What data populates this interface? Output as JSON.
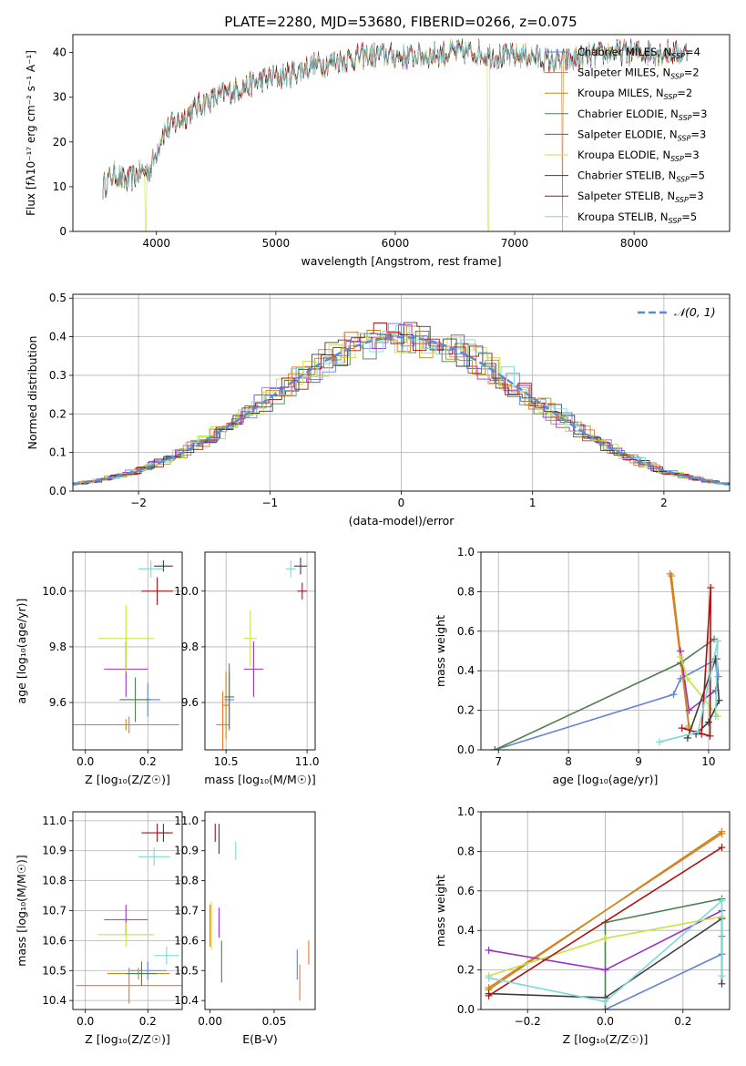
{
  "title": "PLATE=2280, MJD=53680, FIBERID=0266, z=0.075",
  "colors": [
    "#6282d6",
    "#e9772a",
    "#c48a1c",
    "#4f7e4f",
    "#9a32c4",
    "#c8e340",
    "#3e3e3e",
    "#b01010",
    "#7fd8d8"
  ],
  "chart_data": [
    {
      "id": "spectrum",
      "type": "line",
      "xlabel": "wavelength [Angstrom, rest frame]",
      "ylabel": "Flux [fλ10⁻¹⁷ erg cm⁻² s⁻¹ A⁻¹]",
      "xlim": [
        3300,
        8800
      ],
      "ylim": [
        0,
        44
      ],
      "xticks": [
        4000,
        5000,
        6000,
        7000,
        8000
      ],
      "yticks": [
        0,
        10,
        20,
        30,
        40
      ],
      "grid": false,
      "legend_position": "top-right",
      "legend": [
        "Chabrier MILES, N_SSP=4",
        "Salpeter MILES, N_SSP=2",
        "Kroupa MILES, N_SSP=2",
        "Chabrier ELODIE, N_SSP=3",
        "Salpeter ELODIE, N_SSP=3",
        "Kroupa ELODIE, N_SSP=3",
        "Chabrier STELIB, N_SSP=5",
        "Salpeter STELIB, N_SSP=3",
        "Kroupa STELIB, N_SSP=5"
      ],
      "continuum": {
        "x": [
          3550,
          3650,
          3750,
          3850,
          3950,
          4050,
          4150,
          4250,
          4350,
          4500,
          4700,
          4900,
          5100,
          5300,
          5500,
          5700,
          5900,
          6100,
          6300,
          6500,
          6700,
          6900,
          7100,
          7300,
          7400,
          7600,
          7800,
          8000,
          8200,
          8400
        ],
        "y": [
          10,
          13,
          11,
          13,
          14,
          22,
          24,
          26,
          28,
          30,
          32,
          34,
          35,
          37,
          38,
          39,
          39.5,
          39,
          39.5,
          40,
          40,
          39,
          39.5,
          38,
          38,
          39,
          40,
          40,
          40,
          40
        ]
      },
      "breaks": [
        {
          "series": 5,
          "x": 3910
        },
        {
          "series": 5,
          "x": 6780
        },
        {
          "series": 1,
          "x": 7400
        }
      ]
    },
    {
      "id": "residuals",
      "type": "line",
      "xlabel": "(data-model)/error",
      "ylabel": "Normed distribution",
      "xlim": [
        -2.5,
        2.5
      ],
      "ylim": [
        0,
        0.51
      ],
      "xticks": [
        -2,
        -1,
        0,
        1,
        2
      ],
      "yticks": [
        0.0,
        0.1,
        0.2,
        0.3,
        0.4,
        0.5
      ],
      "grid": true,
      "legend_position": "top-right",
      "legend": [
        "𝒩(0, 1)"
      ],
      "bin_width": 0.1
    },
    {
      "id": "z-age",
      "type": "scatter",
      "xlabel": "Z [log₁₀(Z/Z☉)]",
      "ylabel": "age  [log₁₀(age/yr)]",
      "xlim": [
        -0.04,
        0.31
      ],
      "ylim": [
        9.43,
        10.14
      ],
      "xticks": [
        0.0,
        0.2
      ],
      "yticks": [
        9.6,
        9.8,
        10.0
      ],
      "grid": true,
      "points": [
        {
          "series": 0,
          "x": 0.2,
          "y": 9.61,
          "xerr": 0.04,
          "yerr": 0.06
        },
        {
          "series": 1,
          "x": 0.14,
          "y": 9.52,
          "xerr": 0.16,
          "yerr": 0.03
        },
        {
          "series": 2,
          "x": 0.13,
          "y": 9.52,
          "xerr": 0.17,
          "yerr": 0.02
        },
        {
          "series": 3,
          "x": 0.16,
          "y": 9.61,
          "xerr": 0.05,
          "yerr": 0.08
        },
        {
          "series": 4,
          "x": 0.13,
          "y": 9.72,
          "xerr": 0.07,
          "yerr": 0.1
        },
        {
          "series": 5,
          "x": 0.13,
          "y": 9.83,
          "xerr": 0.09,
          "yerr": 0.12
        },
        {
          "series": 6,
          "x": 0.25,
          "y": 10.09,
          "xerr": 0.03,
          "yerr": 0.02
        },
        {
          "series": 7,
          "x": 0.23,
          "y": 10.0,
          "xerr": 0.05,
          "yerr": 0.05
        },
        {
          "series": 8,
          "x": 0.21,
          "y": 10.08,
          "xerr": 0.04,
          "yerr": 0.03
        }
      ]
    },
    {
      "id": "mass-age",
      "type": "scatter",
      "xlabel": "mass [log₁₀(M/M☉)]",
      "ylabel": "",
      "xlim": [
        10.37,
        11.05
      ],
      "ylim": [
        9.43,
        10.14
      ],
      "xticks": [
        10.5,
        11.0
      ],
      "yticks": [
        9.6,
        9.8,
        10.0
      ],
      "grid": true,
      "points": [
        {
          "series": 0,
          "x": 10.52,
          "y": 9.61,
          "xerr": 0.03,
          "yerr": 0.1
        },
        {
          "series": 1,
          "x": 10.48,
          "y": 9.52,
          "xerr": 0.04,
          "yerr": 0.12
        },
        {
          "series": 2,
          "x": 10.5,
          "y": 9.59,
          "xerr": 0.02,
          "yerr": 0.12
        },
        {
          "series": 3,
          "x": 10.52,
          "y": 9.62,
          "xerr": 0.03,
          "yerr": 0.12
        },
        {
          "series": 4,
          "x": 10.67,
          "y": 9.72,
          "xerr": 0.06,
          "yerr": 0.1
        },
        {
          "series": 5,
          "x": 10.65,
          "y": 9.83,
          "xerr": 0.04,
          "yerr": 0.1
        },
        {
          "series": 6,
          "x": 10.96,
          "y": 10.09,
          "xerr": 0.04,
          "yerr": 0.03
        },
        {
          "series": 7,
          "x": 10.97,
          "y": 10.0,
          "xerr": 0.03,
          "yerr": 0.03
        },
        {
          "series": 8,
          "x": 10.9,
          "y": 10.08,
          "xerr": 0.03,
          "yerr": 0.03
        }
      ]
    },
    {
      "id": "age-weight",
      "type": "line",
      "xlabel": "age  [log₁₀(age/yr)]",
      "ylabel": "mass weight",
      "xlim": [
        6.75,
        10.3
      ],
      "ylim": [
        0,
        1.0
      ],
      "xticks": [
        7,
        8,
        9,
        10
      ],
      "yticks": [
        0.0,
        0.2,
        0.4,
        0.6,
        0.8,
        1.0
      ],
      "grid": true,
      "series": [
        {
          "series": 0,
          "x": [
            6.95,
            9.5,
            9.6,
            10.12,
            10.14
          ],
          "y": [
            0.0,
            0.28,
            0.36,
            0.46,
            0.37
          ]
        },
        {
          "series": 1,
          "x": [
            9.45,
            9.72
          ],
          "y": [
            0.89,
            0.11
          ]
        },
        {
          "series": 2,
          "x": [
            9.47,
            9.72
          ],
          "y": [
            0.88,
            0.12
          ]
        },
        {
          "series": 3,
          "x": [
            6.95,
            9.6,
            10.08
          ],
          "y": [
            0.0,
            0.44,
            0.56
          ]
        },
        {
          "series": 4,
          "x": [
            9.6,
            9.72,
            10.1
          ],
          "y": [
            0.5,
            0.2,
            0.3
          ]
        },
        {
          "series": 5,
          "x": [
            9.6,
            9.7,
            10.13
          ],
          "y": [
            0.47,
            0.36,
            0.17
          ]
        },
        {
          "series": 6,
          "x": [
            9.7,
            10.1,
            10.15,
            10.0,
            9.82
          ],
          "y": [
            0.06,
            0.46,
            0.25,
            0.14,
            0.08
          ]
        },
        {
          "series": 7,
          "x": [
            9.62,
            10.02,
            10.03,
            9.9
          ],
          "y": [
            0.11,
            0.07,
            0.82,
            0.08
          ]
        },
        {
          "series": 8,
          "x": [
            9.3,
            9.85,
            10.13,
            10.1
          ],
          "y": [
            0.04,
            0.09,
            0.55,
            0.17
          ]
        }
      ]
    },
    {
      "id": "z-mass",
      "type": "scatter",
      "xlabel": "Z [log₁₀(Z/Z☉)]",
      "ylabel": "mass [log₁₀(M/M☉)]",
      "xlim": [
        -0.04,
        0.31
      ],
      "ylim": [
        10.37,
        11.03
      ],
      "xticks": [
        0.0,
        0.2
      ],
      "yticks": [
        10.4,
        10.5,
        10.6,
        10.7,
        10.8,
        10.9,
        11.0
      ],
      "grid": true,
      "points": [
        {
          "series": 0,
          "x": 0.2,
          "y": 10.5,
          "xerr": 0.06,
          "yerr": 0.03
        },
        {
          "series": 1,
          "x": 0.14,
          "y": 10.45,
          "xerr": 0.17,
          "yerr": 0.06
        },
        {
          "series": 2,
          "x": 0.17,
          "y": 10.49,
          "xerr": 0.1,
          "yerr": 0.02
        },
        {
          "series": 3,
          "x": 0.18,
          "y": 10.49,
          "xerr": 0.05,
          "yerr": 0.04
        },
        {
          "series": 4,
          "x": 0.13,
          "y": 10.67,
          "xerr": 0.07,
          "yerr": 0.05
        },
        {
          "series": 5,
          "x": 0.13,
          "y": 10.62,
          "xerr": 0.09,
          "yerr": 0.04
        },
        {
          "series": 6,
          "x": 0.25,
          "y": 10.96,
          "xerr": 0.02,
          "yerr": 0.03
        },
        {
          "series": 7,
          "x": 0.23,
          "y": 10.96,
          "xerr": 0.05,
          "yerr": 0.03
        },
        {
          "series": 8,
          "x": 0.22,
          "y": 10.88,
          "xerr": 0.05,
          "yerr": 0.03
        },
        {
          "series": 8,
          "x": 0.26,
          "y": 10.55,
          "xerr": 0.04,
          "yerr": 0.03
        }
      ]
    },
    {
      "id": "ebv-mass",
      "type": "scatter",
      "xlabel": "E(B-V)",
      "ylabel": "",
      "xlim": [
        -0.004,
        0.082
      ],
      "ylim": [
        10.37,
        11.03
      ],
      "xticks": [
        0.0,
        0.05
      ],
      "yticks": [
        10.4,
        10.5,
        10.6,
        10.7,
        10.8,
        10.9,
        11.0
      ],
      "grid": false,
      "points": [
        {
          "series": 0,
          "x": 0.068,
          "y": 10.52,
          "yerr": 0.05
        },
        {
          "series": 1,
          "x": 0.07,
          "y": 10.46,
          "yerr": 0.06
        },
        {
          "series": 2,
          "x": 0.0,
          "y": 10.65,
          "yerr": 0.07
        },
        {
          "series": 3,
          "x": 0.009,
          "y": 10.53,
          "yerr": 0.07
        },
        {
          "series": 4,
          "x": 0.007,
          "y": 10.66,
          "yerr": 0.05
        },
        {
          "series": 5,
          "x": 0.001,
          "y": 10.65,
          "yerr": 0.08
        },
        {
          "series": 6,
          "x": 0.007,
          "y": 10.94,
          "yerr": 0.05
        },
        {
          "series": 7,
          "x": 0.004,
          "y": 10.96,
          "yerr": 0.03
        },
        {
          "series": 8,
          "x": 0.02,
          "y": 10.9,
          "yerr": 0.03
        },
        {
          "series": 1,
          "x": 0.077,
          "y": 10.56,
          "yerr": 0.04
        }
      ]
    },
    {
      "id": "z-weight",
      "type": "line",
      "xlabel": "Z [log₁₀(Z/Z☉)]",
      "ylabel": "mass weight",
      "xlim": [
        -0.32,
        0.32
      ],
      "ylim": [
        0,
        1.0
      ],
      "xticks": [
        -0.2,
        0.0,
        0.2
      ],
      "yticks": [
        0.0,
        0.2,
        0.4,
        0.6,
        0.8,
        1.0
      ],
      "grid": true,
      "series": [
        {
          "series": 0,
          "x": [
            0.0,
            0.3,
            0.3
          ],
          "y": [
            0.0,
            0.28,
            0.37
          ]
        },
        {
          "series": 1,
          "x": [
            -0.3,
            0.3
          ],
          "y": [
            0.11,
            0.89
          ]
        },
        {
          "series": 2,
          "x": [
            -0.3,
            0.3
          ],
          "y": [
            0.1,
            0.9
          ]
        },
        {
          "series": 3,
          "x": [
            0.0,
            0.0,
            0.3
          ],
          "y": [
            0.0,
            0.44,
            0.56
          ]
        },
        {
          "series": 4,
          "x": [
            -0.3,
            0.0,
            0.3
          ],
          "y": [
            0.3,
            0.2,
            0.5
          ]
        },
        {
          "series": 5,
          "x": [
            -0.3,
            0.0,
            0.3
          ],
          "y": [
            0.17,
            0.36,
            0.47
          ]
        },
        {
          "series": 6,
          "x": [
            -0.3,
            0.0,
            0.3,
            0.3
          ],
          "y": [
            0.08,
            0.06,
            0.46,
            0.13
          ]
        },
        {
          "series": 7,
          "x": [
            -0.3,
            0.3
          ],
          "y": [
            0.07,
            0.82
          ]
        },
        {
          "series": 8,
          "x": [
            -0.3,
            0.0,
            0.3,
            0.3
          ],
          "y": [
            0.16,
            0.04,
            0.55,
            0.17
          ]
        }
      ]
    }
  ]
}
